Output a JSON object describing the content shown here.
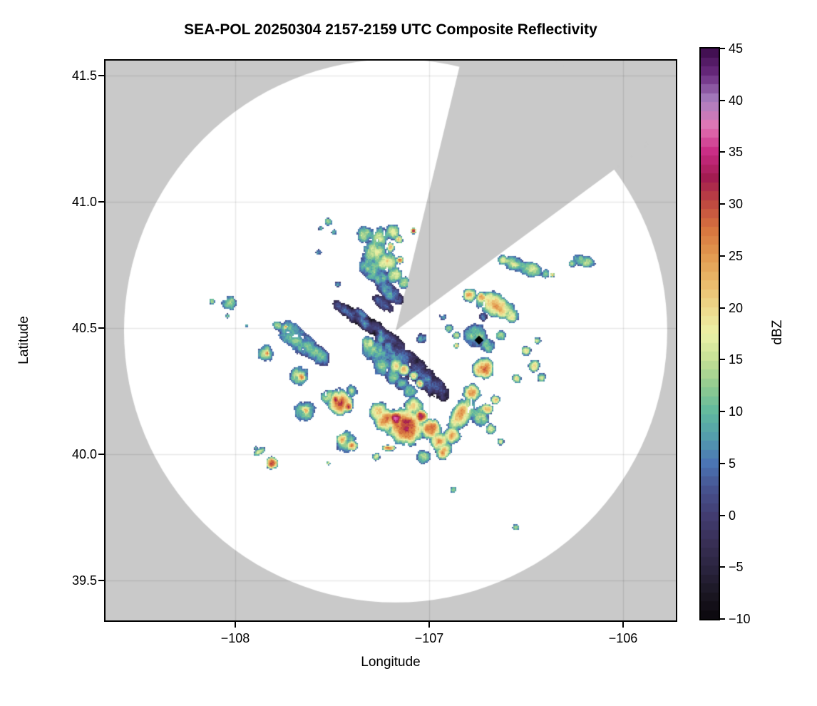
{
  "chart_data": {
    "type": "heatmap",
    "title": "SEA-POL 20250304 2157-2159 UTC Composite Reflectivity",
    "xlabel": "Longitude",
    "ylabel": "Latitude",
    "axes": {
      "lon_min": -108.669,
      "lon_max": -105.728,
      "lat_min": 39.342,
      "lat_max": 41.559,
      "grid": true,
      "x_ticks": [
        {
          "label": "−108",
          "value": -108
        },
        {
          "label": "−107",
          "value": -107
        },
        {
          "label": "−106",
          "value": -106
        }
      ],
      "y_ticks": [
        {
          "label": "41.5",
          "value": 41.5
        },
        {
          "label": "41.0",
          "value": 41.0
        },
        {
          "label": "40.5",
          "value": 40.5
        },
        {
          "label": "40.0",
          "value": 40.0
        },
        {
          "label": "39.5",
          "value": 39.5
        }
      ]
    },
    "radar": {
      "name": "SEA-POL",
      "lon": -107.173,
      "lat": 40.489,
      "range_deg_lat": 1.076,
      "blocked_sector_azimuth_deg": [
        13.6,
        53.9
      ]
    },
    "marker": {
      "lon": -106.743,
      "lat": 40.452,
      "shape": "diamond",
      "color": "#000000"
    },
    "colors": {
      "outside_scan": "#c9c9c9",
      "scan_background": "#ffffff",
      "gridline": "rgba(0,0,0,0.09)"
    },
    "lon_aspect": 0.768,
    "colorbar": {
      "label": "dBZ",
      "vmin": -10,
      "vmax": 45,
      "bands": 64,
      "tick_values": [
        45,
        40,
        35,
        30,
        25,
        20,
        15,
        10,
        5,
        0,
        -5,
        -10
      ],
      "tick_labels": [
        "45",
        "40",
        "35",
        "30",
        "25",
        "20",
        "15",
        "10",
        "5",
        "0",
        "−5",
        "−10"
      ],
      "stop_values": [
        -10,
        -7.5,
        -5,
        -2.5,
        0,
        2.5,
        5,
        7.5,
        10,
        12.5,
        15,
        17.5,
        20,
        22.5,
        25,
        27.5,
        30,
        32.5,
        35,
        37.5,
        40,
        42.5,
        45
      ],
      "stop_colors": [
        "#0a070c",
        "#1b1723",
        "#2b2440",
        "#393057",
        "#423d71",
        "#46528e",
        "#4b74b4",
        "#539dad",
        "#61ba9e",
        "#92cb90",
        "#c6e095",
        "#ecf2a7",
        "#eed88b",
        "#eab96a",
        "#e29a50",
        "#d8763f",
        "#c04a40",
        "#a21c50",
        "#c92a84",
        "#e176b4",
        "#a87fc0",
        "#6b2a80",
        "#3b0a4a"
      ]
    },
    "cells_format": "[lon, lat, radius_deg_lat, peak_dbz, elongation, elongation_angle_deg]",
    "cells": [
      [
        -107.52,
        40.92,
        0.015,
        12
      ],
      [
        -107.56,
        40.895,
        0.01,
        10
      ],
      [
        -107.49,
        40.88,
        0.012,
        11
      ],
      [
        -107.57,
        40.8,
        0.012,
        10
      ],
      [
        -107.47,
        40.675,
        0.012,
        8
      ],
      [
        -107.33,
        40.87,
        0.035,
        14
      ],
      [
        -107.26,
        40.86,
        0.045,
        17
      ],
      [
        -107.19,
        40.88,
        0.032,
        16
      ],
      [
        -107.08,
        40.885,
        0.013,
        30
      ],
      [
        -107.28,
        40.8,
        0.05,
        18
      ],
      [
        -107.2,
        40.82,
        0.02,
        25
      ],
      [
        -107.155,
        40.85,
        0.018,
        23
      ],
      [
        -107.3,
        40.74,
        0.05,
        12
      ],
      [
        -107.33,
        40.765,
        0.02,
        7
      ],
      [
        -107.22,
        40.76,
        0.045,
        19
      ],
      [
        -107.15,
        40.77,
        0.016,
        24
      ],
      [
        -107.25,
        40.7,
        0.04,
        9
      ],
      [
        -107.18,
        40.71,
        0.035,
        15
      ],
      [
        -107.13,
        40.68,
        0.025,
        16
      ],
      [
        -107.21,
        40.645,
        0.035,
        8,
        1.8,
        -40
      ],
      [
        -107.17,
        40.625,
        0.022,
        3,
        1.8,
        -40
      ],
      [
        -107.24,
        40.6,
        0.025,
        5,
        2,
        -40
      ],
      [
        -107.445,
        40.575,
        0.022,
        4,
        2.2,
        -40
      ],
      [
        -107.39,
        40.55,
        0.028,
        2,
        2.2,
        -40
      ],
      [
        -107.335,
        40.525,
        0.028,
        3,
        2.2,
        -40
      ],
      [
        -107.28,
        40.5,
        0.032,
        1,
        2.2,
        -40
      ],
      [
        -107.235,
        40.475,
        0.028,
        3,
        2.2,
        -40
      ],
      [
        -107.19,
        40.45,
        0.028,
        2,
        2.2,
        -40
      ],
      [
        -107.35,
        40.555,
        0.018,
        6,
        2,
        -40
      ],
      [
        -107.31,
        40.44,
        0.03,
        14
      ],
      [
        -107.25,
        40.455,
        0.025,
        9
      ],
      [
        -107.28,
        40.41,
        0.05,
        11
      ],
      [
        -107.22,
        40.4,
        0.05,
        8
      ],
      [
        -107.17,
        40.38,
        0.055,
        5
      ],
      [
        -107.12,
        40.36,
        0.055,
        3
      ],
      [
        -107.07,
        40.33,
        0.05,
        2
      ],
      [
        -107.02,
        40.3,
        0.045,
        5
      ],
      [
        -106.97,
        40.265,
        0.04,
        3,
        1.8,
        -40
      ],
      [
        -107.13,
        40.335,
        0.025,
        25
      ],
      [
        -107.08,
        40.31,
        0.02,
        23
      ],
      [
        -107.17,
        40.35,
        0.03,
        18
      ],
      [
        -107.05,
        40.28,
        0.018,
        20
      ],
      [
        -107.24,
        40.35,
        0.04,
        12
      ],
      [
        -107.19,
        40.31,
        0.035,
        10
      ],
      [
        -107.14,
        40.28,
        0.03,
        9
      ],
      [
        -107.1,
        40.25,
        0.03,
        12
      ],
      [
        -107.04,
        40.46,
        0.02,
        8
      ],
      [
        -108.03,
        40.6,
        0.03,
        16
      ],
      [
        -108.12,
        40.605,
        0.012,
        13
      ],
      [
        -108.04,
        40.548,
        0.009,
        11
      ],
      [
        -107.94,
        40.51,
        0.007,
        11
      ],
      [
        -107.78,
        40.51,
        0.02,
        16
      ],
      [
        -107.74,
        40.505,
        0.01,
        24
      ],
      [
        -107.7,
        40.47,
        0.045,
        12,
        1.8,
        -40
      ],
      [
        -107.64,
        40.43,
        0.045,
        11,
        1.8,
        -40
      ],
      [
        -107.58,
        40.4,
        0.035,
        9,
        1.8,
        -40
      ],
      [
        -107.84,
        40.4,
        0.035,
        15
      ],
      [
        -107.835,
        40.4,
        0.015,
        25
      ],
      [
        -107.67,
        40.31,
        0.04,
        15
      ],
      [
        -107.66,
        40.305,
        0.02,
        26
      ],
      [
        -107.64,
        40.17,
        0.045,
        15
      ],
      [
        -107.635,
        40.175,
        0.022,
        25
      ],
      [
        -107.81,
        39.965,
        0.026,
        30
      ],
      [
        -107.815,
        39.965,
        0.011,
        33
      ],
      [
        -107.875,
        40.01,
        0.013,
        16,
        2,
        30
      ],
      [
        -107.895,
        40.025,
        0.008,
        11
      ],
      [
        -107.46,
        40.205,
        0.055,
        28
      ],
      [
        -107.48,
        40.215,
        0.025,
        31
      ],
      [
        -107.42,
        40.19,
        0.022,
        29
      ],
      [
        -107.52,
        40.23,
        0.03,
        16
      ],
      [
        -107.4,
        40.25,
        0.025,
        13
      ],
      [
        -107.45,
        40.06,
        0.028,
        24
      ],
      [
        -107.4,
        40.035,
        0.025,
        26
      ],
      [
        -107.43,
        40.05,
        0.045,
        13
      ],
      [
        -107.17,
        40.14,
        0.035,
        36
      ],
      [
        -107.04,
        40.15,
        0.03,
        35
      ],
      [
        -107.12,
        40.11,
        0.08,
        30
      ],
      [
        -107.22,
        40.135,
        0.05,
        27
      ],
      [
        -107.26,
        40.17,
        0.04,
        20
      ],
      [
        -106.99,
        40.1,
        0.045,
        28
      ],
      [
        -106.95,
        40.05,
        0.04,
        24
      ],
      [
        -106.93,
        40.005,
        0.028,
        24
      ],
      [
        -107.03,
        39.99,
        0.03,
        14
      ],
      [
        -107.08,
        40.19,
        0.04,
        18
      ],
      [
        -107.275,
        39.99,
        0.016,
        17
      ],
      [
        -107.21,
        40.025,
        0.013,
        28,
        2.2,
        0
      ],
      [
        -107.52,
        39.965,
        0.008,
        15
      ],
      [
        -106.875,
        39.86,
        0.014,
        13
      ],
      [
        -106.555,
        39.71,
        0.014,
        17
      ],
      [
        -106.62,
        40.77,
        0.022,
        15
      ],
      [
        -106.56,
        40.755,
        0.03,
        14,
        1.7,
        -15
      ],
      [
        -106.47,
        40.73,
        0.03,
        14,
        1.7,
        -15
      ],
      [
        -106.4,
        40.715,
        0.018,
        13
      ],
      [
        -106.365,
        40.71,
        0.01,
        21
      ],
      [
        -106.26,
        40.755,
        0.015,
        12
      ],
      [
        -106.2,
        40.765,
        0.025,
        14,
        1.8,
        -15
      ],
      [
        -106.79,
        40.63,
        0.03,
        22
      ],
      [
        -106.73,
        40.62,
        0.025,
        27
      ],
      [
        -106.66,
        40.59,
        0.05,
        24,
        1.8,
        -25
      ],
      [
        -106.575,
        40.55,
        0.03,
        20
      ],
      [
        -106.72,
        40.545,
        0.018,
        6
      ],
      [
        -106.76,
        40.47,
        0.05,
        11
      ],
      [
        -106.7,
        40.43,
        0.03,
        13
      ],
      [
        -106.63,
        40.47,
        0.02,
        12
      ],
      [
        -106.72,
        40.34,
        0.045,
        28
      ],
      [
        -106.73,
        40.345,
        0.02,
        30
      ],
      [
        -106.78,
        40.245,
        0.038,
        25
      ],
      [
        -106.83,
        40.16,
        0.045,
        24,
        1.8,
        55
      ],
      [
        -106.88,
        40.075,
        0.035,
        20
      ],
      [
        -106.92,
        40.02,
        0.03,
        22
      ],
      [
        -106.5,
        40.41,
        0.02,
        17
      ],
      [
        -106.46,
        40.35,
        0.025,
        18
      ],
      [
        -106.42,
        40.305,
        0.02,
        16
      ],
      [
        -106.55,
        40.3,
        0.02,
        19
      ],
      [
        -106.44,
        40.45,
        0.015,
        14
      ],
      [
        -106.9,
        40.5,
        0.018,
        13
      ],
      [
        -106.86,
        40.47,
        0.015,
        15
      ],
      [
        -106.93,
        40.545,
        0.014,
        10
      ],
      [
        -106.86,
        40.43,
        0.012,
        21
      ],
      [
        -106.74,
        40.15,
        0.04,
        13
      ],
      [
        -106.7,
        40.18,
        0.025,
        24
      ],
      [
        -106.66,
        40.215,
        0.02,
        22
      ],
      [
        -106.63,
        40.05,
        0.016,
        16
      ],
      [
        -106.68,
        40.1,
        0.022,
        15
      ]
    ]
  }
}
